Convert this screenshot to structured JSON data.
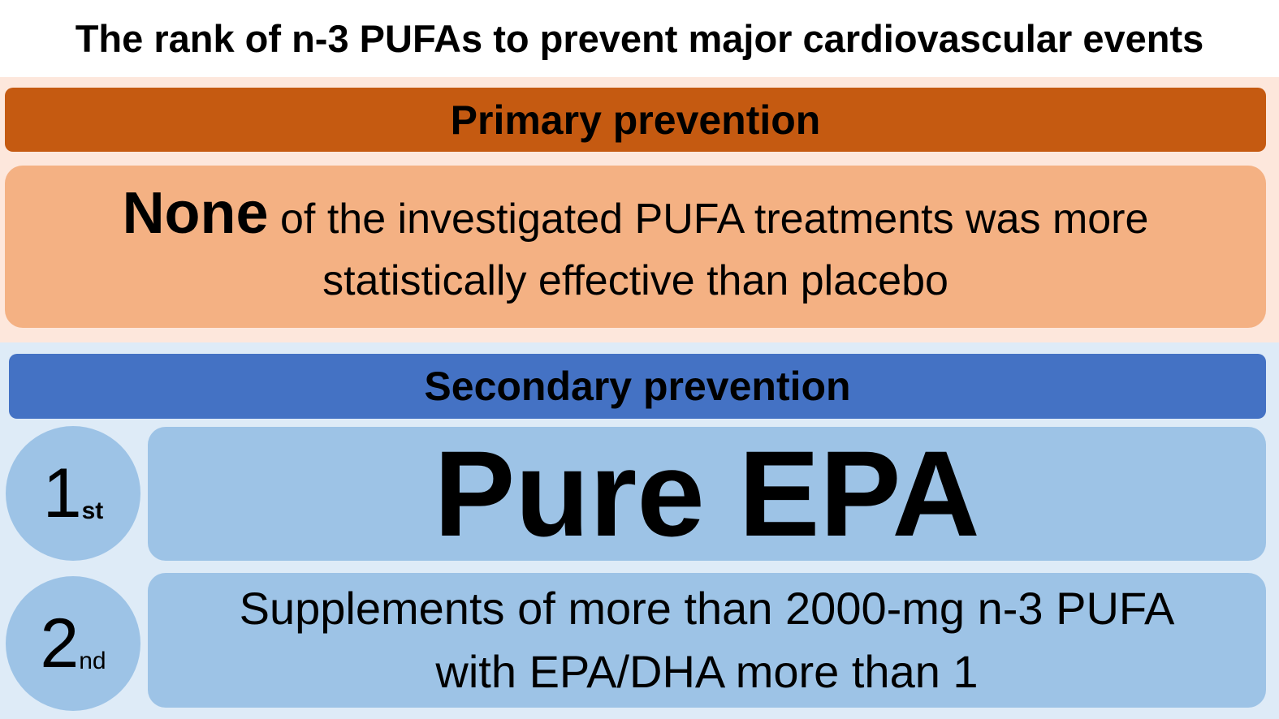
{
  "title": "The rank of n-3 PUFAs to prevent major cardiovascular events",
  "primary": {
    "heading": "Primary prevention",
    "emphasis": "None",
    "line1_rest": " of the investigated PUFA treatments was more",
    "line2": "statistically effective than placebo"
  },
  "secondary": {
    "heading": "Secondary prevention",
    "ranks": [
      {
        "number": "1",
        "suffix": "st",
        "text": "Pure EPA"
      },
      {
        "number": "2",
        "suffix": "nd",
        "line1": "Supplements of more than 2000-mg n-3 PUFA",
        "line2": "with EPA/DHA more than 1"
      }
    ]
  },
  "colors": {
    "primary_bar": "#c55a11",
    "primary_box": "#f4b183",
    "primary_bg": "#fde7dc",
    "secondary_bar": "#4472c4",
    "secondary_box": "#9dc3e6",
    "secondary_bg": "#deebf7"
  }
}
